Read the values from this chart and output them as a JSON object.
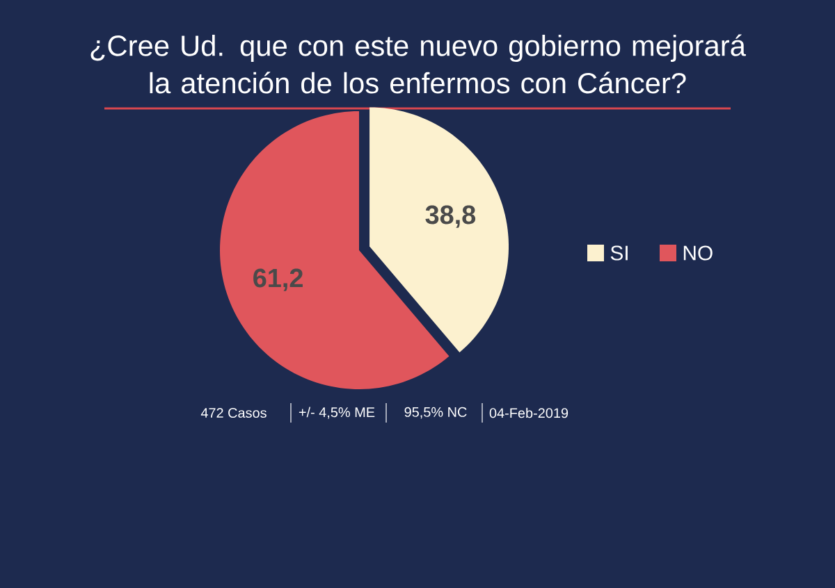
{
  "chart_data": {
    "type": "pie",
    "title": "¿Cree Ud. que con este nuevo gobierno mejorará la atención de los enfermos con Cáncer?",
    "categories": [
      "SI",
      "NO"
    ],
    "values": [
      38.8,
      61.2
    ],
    "colors": [
      "#fcf1cf",
      "#e0565c"
    ],
    "value_labels": [
      "38,8",
      "61,2"
    ],
    "legend": "right",
    "annotations": [
      "472 Casos",
      "+/- 4,5% ME",
      "95,5% NC",
      "04-Feb-2019"
    ]
  }
}
